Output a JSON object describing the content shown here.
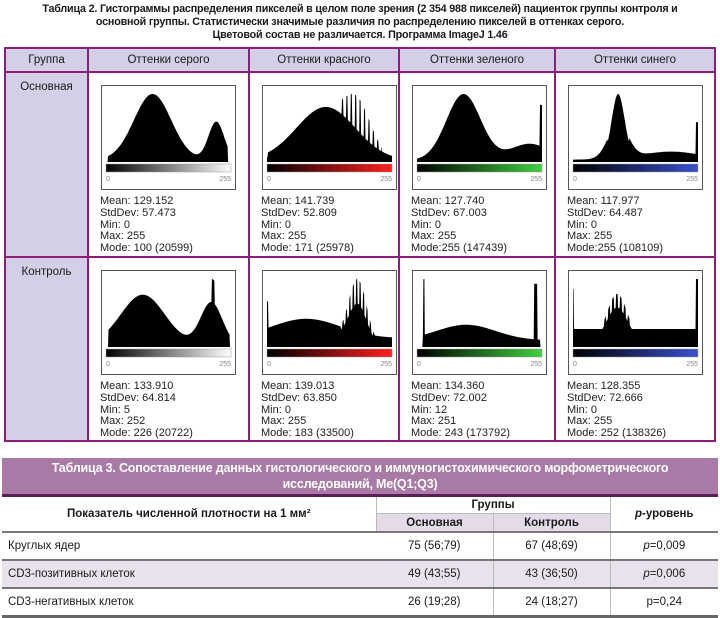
{
  "table2": {
    "caption_lines": [
      "Таблица 2. Гистограммы распределения пикселей в целом поле зрения (2 354 988 пикселей) пациенток группы контроля и",
      "основной группы. Статистически значимые различия по распределению пикселей в оттенках серого.",
      "Цветовой состав не различается. Программа ImageJ 1.46"
    ],
    "headers": [
      "Группа",
      "Оттенки серого",
      "Оттенки красного",
      "Оттенки зеленого",
      "Оттенки синего"
    ],
    "rows": [
      {
        "group": "Основная",
        "cells": [
          {
            "channel": "gray",
            "stats": [
              "Mean: 129.152",
              "StdDev: 57.473",
              "Min: 0",
              "Max: 255",
              "Mode: 100 (20599)"
            ]
          },
          {
            "channel": "red",
            "stats": [
              "Mean: 141.739",
              "StdDev: 52.809",
              "Min: 0",
              "Max: 255",
              "Mode: 171 (25978)"
            ]
          },
          {
            "channel": "green",
            "stats": [
              "Mean: 127.740",
              "StdDev: 67.003",
              "Min: 0",
              "Max: 255",
              "Mode:255 (147439)"
            ]
          },
          {
            "channel": "blue",
            "stats": [
              "Mean: 117.977",
              "StdDev: 64.487",
              "Min: 0",
              "Max: 255",
              "Mode:255 (108109)"
            ]
          }
        ]
      },
      {
        "group": "Контроль",
        "cells": [
          {
            "channel": "gray",
            "stats": [
              "Mean: 133.910",
              "StdDev: 64.814",
              "Min: 5",
              "Max: 252",
              "Mode: 226 (20722)"
            ]
          },
          {
            "channel": "red",
            "stats": [
              "Mean: 139.013",
              "StdDev: 63.850",
              "Min: 0",
              "Max: 255",
              "Mode: 183 (33500)"
            ]
          },
          {
            "channel": "green",
            "stats": [
              "Mean: 134.360",
              "StdDev: 72.002",
              "Min: 12",
              "Max: 251",
              "Mode: 243 (173792)"
            ]
          },
          {
            "channel": "blue",
            "stats": [
              "Mean: 128.355",
              "StdDev: 72.666",
              "Min: 0",
              "Max: 255",
              "Mode: 252 (138326)"
            ]
          }
        ]
      }
    ],
    "axis_min_label": "0",
    "axis_max_label": "255",
    "gradient_colors": {
      "gray": "#ffffff",
      "red": "#ff2020",
      "green": "#40d040",
      "blue": "#3a50d0"
    }
  },
  "table3": {
    "title_lines": [
      "Таблица 3. Сопоставление данных гистологического и иммуногистохимического морфометрического",
      "исследований, Me(Q1;Q3)"
    ],
    "col_indicator": "Показатель численной плотности на 1 мм²",
    "col_groups": "Группы",
    "col_main": "Основная",
    "col_control": "Контроль",
    "col_p_italic": "p",
    "col_p_rest": "-уровень",
    "rows": [
      {
        "label": "Круглых ядер",
        "main": "75 (56;79)",
        "control": "67 (48;69)",
        "p_italic": "p",
        "p_rest": "=0,009"
      },
      {
        "label": "CD3-позитивных клеток",
        "main": "49 (43;55)",
        "control": "43 (36;50)",
        "p_italic": "p",
        "p_rest": "=0,006"
      },
      {
        "label": "CD3-негативных клеток",
        "main": "26 (19;28)",
        "control": "24 (18;27)",
        "p_italic": "",
        "p_rest": "p=0,24"
      }
    ]
  }
}
